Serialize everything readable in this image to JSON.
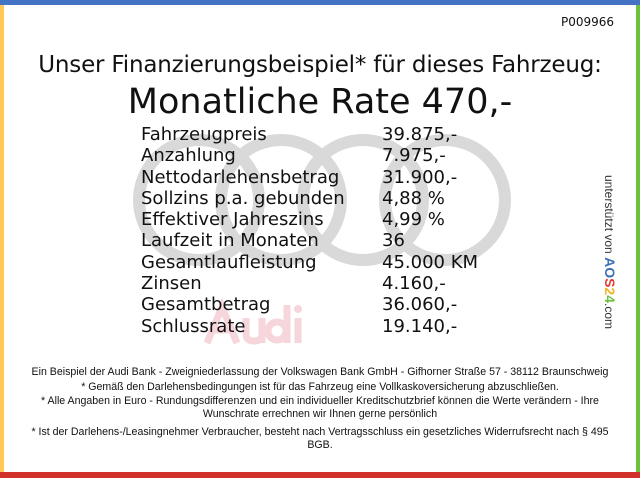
{
  "reference_code": "P009966",
  "subtitle": "Unser Finanzierungsbeispiel* für dieses Fahrzeug:",
  "headline": "Monatliche Rate 470,-",
  "watermark": {
    "brand_text": "Audi",
    "ring_color": "#d9d9d9",
    "text_color": "#f6d6da"
  },
  "rows": [
    {
      "label": "Fahrzeugpreis",
      "value": "39.875,-"
    },
    {
      "label": "Anzahlung",
      "value": "7.975,-"
    },
    {
      "label": "Nettodarlehensbetrag",
      "value": "31.900,-"
    },
    {
      "label": "Sollzins p.a. gebunden",
      "value": "4,88 %"
    },
    {
      "label": "Effektiver Jahreszins",
      "value": "4,99 %"
    },
    {
      "label": "Laufzeit in Monaten",
      "value": "36"
    },
    {
      "label": "Gesamtlaufleistung",
      "value": "45.000 KM"
    },
    {
      "label": "Zinsen",
      "value": "4.160,-"
    },
    {
      "label": "Gesamtbetrag",
      "value": "36.060,-"
    },
    {
      "label": "Schlussrate",
      "value": "19.140,-"
    }
  ],
  "side_credit": {
    "prefix": "unterstützt von",
    "logo": "AOS24",
    "suffix": ".com"
  },
  "footer": [
    "Ein Beispiel der Audi Bank - Zweigniederlassung der Volkswagen Bank GmbH - Gifhorner Straße 57 - 38112 Braunschweig",
    "* Gemäß den Darlehensbedingungen ist für das Fahrzeug eine Vollkaskoversicherung abzuschließen.",
    "* Alle Angaben in Euro - Rundungsdifferenzen und ein individueller Kreditschutzbrief können die Werte verändern - Ihre Wunschrate errechnen wir Ihnen gerne persönlich",
    "* Ist der Darlehens-/Leasingnehmer Verbraucher, besteht nach Vertragsschluss ein gesetzliches Widerrufsrecht nach § 495 BGB."
  ],
  "colors": {
    "top": "#4472c4",
    "left": "#ffc857",
    "right": "#70c040",
    "bottom": "#d2302a"
  }
}
